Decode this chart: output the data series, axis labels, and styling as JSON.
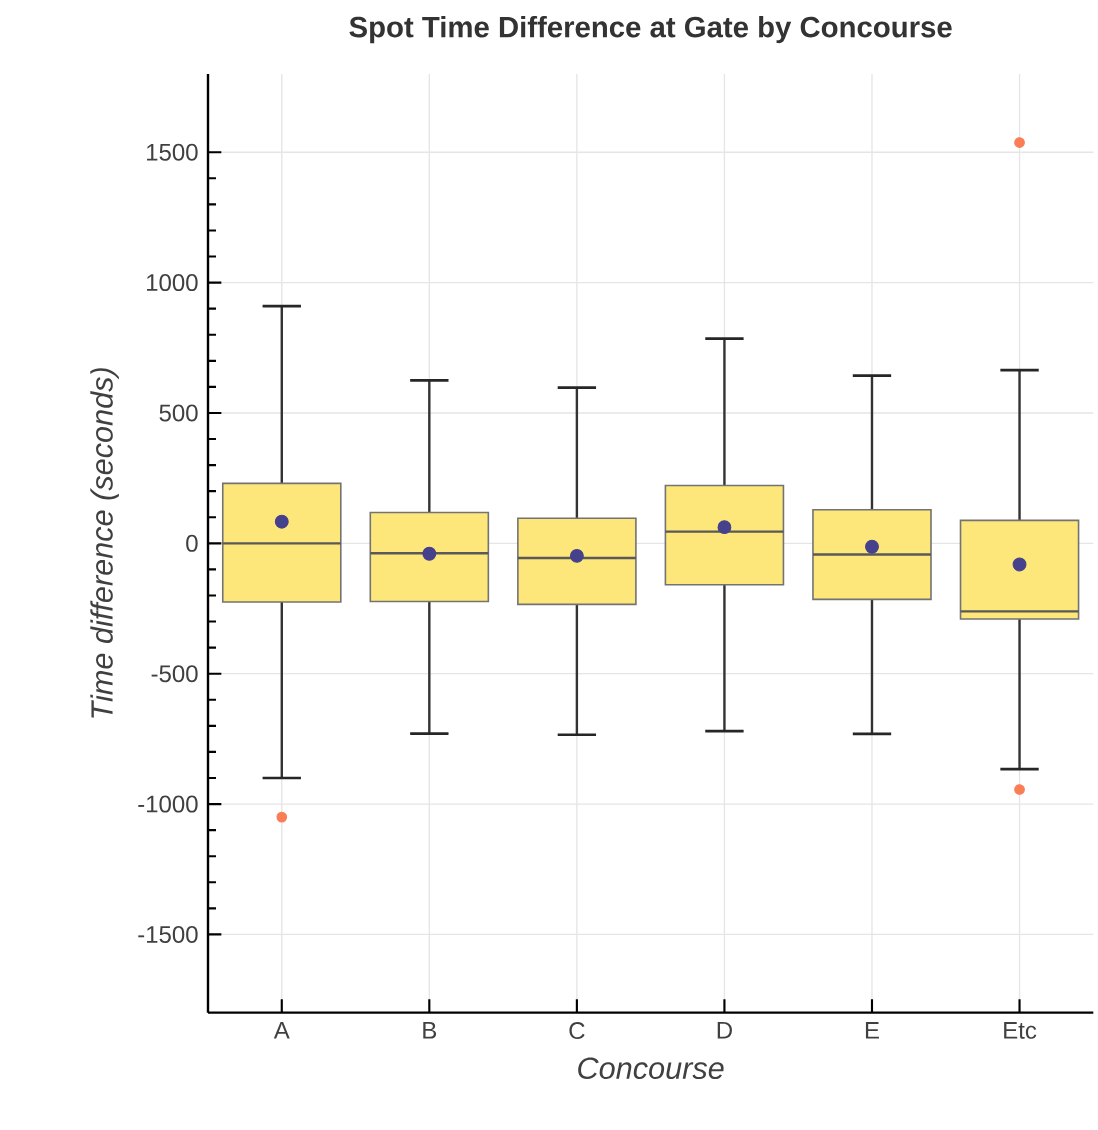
{
  "chart_data": {
    "type": "box",
    "title": "Spot Time Difference at Gate by Concourse",
    "xlabel": "Concourse",
    "ylabel": "Time difference (seconds)",
    "categories": [
      "A",
      "B",
      "C",
      "D",
      "E",
      "Etc"
    ],
    "series": [
      {
        "color": "#fde77a",
        "boxes": [
          {
            "low": -900,
            "q1": -225,
            "median": 0,
            "q3": 230,
            "high": 910,
            "mean": 83,
            "outliers": [
              -1050
            ]
          },
          {
            "low": -730,
            "q1": -223,
            "median": -38,
            "q3": 118,
            "high": 625,
            "mean": -40
          },
          {
            "low": -734,
            "q1": -234,
            "median": -56,
            "q3": 96,
            "high": 597,
            "mean": -48
          },
          {
            "low": -720,
            "q1": -159,
            "median": 45,
            "q3": 222,
            "high": 785,
            "mean": 62
          },
          {
            "low": -731,
            "q1": -215,
            "median": -43,
            "q3": 129,
            "high": 643,
            "mean": -13
          },
          {
            "low": -866,
            "q1": -290,
            "median": -261,
            "q3": 88,
            "high": 664,
            "mean": -81,
            "outliers": [
              1537,
              -944
            ]
          }
        ]
      }
    ],
    "ylim": [
      -1800,
      1800
    ],
    "yticks": [
      -1500,
      -1000,
      -500,
      0,
      500,
      1000,
      1500
    ],
    "grid": true
  }
}
